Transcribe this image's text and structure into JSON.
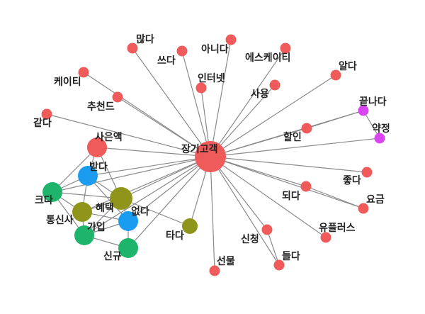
{
  "colors": {
    "red": "#ef5a5a",
    "purple": "#d946ef",
    "green": "#1fb46b",
    "blue": "#1a9cf0",
    "olive": "#8f951b",
    "edge": "#8a8a8a"
  },
  "nodes": [
    {
      "id": "jangigogaek",
      "label": "장기고객",
      "color": "red",
      "size": "hub"
    },
    {
      "id": "manta",
      "label": "많다",
      "color": "red",
      "size": "small"
    },
    {
      "id": "sseuda",
      "label": "쓰다",
      "color": "red",
      "size": "small"
    },
    {
      "id": "anida",
      "label": "아니다",
      "color": "red",
      "size": "small"
    },
    {
      "id": "eseukeiti",
      "label": "에스케이티",
      "color": "red",
      "size": "small"
    },
    {
      "id": "alda",
      "label": "알다",
      "color": "red",
      "size": "small"
    },
    {
      "id": "keiti",
      "label": "케이티",
      "color": "red",
      "size": "small"
    },
    {
      "id": "inteonet",
      "label": "인터넷",
      "color": "red",
      "size": "small"
    },
    {
      "id": "sayong",
      "label": "사용",
      "color": "red",
      "size": "small"
    },
    {
      "id": "chucheondeu",
      "label": "추천드",
      "color": "red",
      "size": "small"
    },
    {
      "id": "kkeutnada",
      "label": "끝나다",
      "color": "purple",
      "size": "small"
    },
    {
      "id": "gatda",
      "label": "같다",
      "color": "red",
      "size": "small"
    },
    {
      "id": "harin",
      "label": "할인",
      "color": "red",
      "size": "small"
    },
    {
      "id": "yakjeong",
      "label": "약정",
      "color": "purple",
      "size": "small"
    },
    {
      "id": "saeunhaek",
      "label": "사은액",
      "color": "red",
      "size": "medium"
    },
    {
      "id": "batda",
      "label": "받다",
      "color": "blue",
      "size": "medium"
    },
    {
      "id": "jota",
      "label": "좋다",
      "color": "red",
      "size": "small"
    },
    {
      "id": "keuda",
      "label": "크다",
      "color": "green",
      "size": "medium"
    },
    {
      "id": "hyetaek",
      "label": "혜택",
      "color": "olive",
      "size": "large"
    },
    {
      "id": "doeda",
      "label": "되다",
      "color": "red",
      "size": "small"
    },
    {
      "id": "yogeum",
      "label": "요금",
      "color": "red",
      "size": "small"
    },
    {
      "id": "tongsinsa",
      "label": "통신사",
      "color": "olive",
      "size": "medium"
    },
    {
      "id": "eopda",
      "label": "없다",
      "color": "blue",
      "size": "medium"
    },
    {
      "id": "gaip",
      "label": "가입",
      "color": "green",
      "size": "medium"
    },
    {
      "id": "yupeulleoseu",
      "label": "유플러스",
      "color": "red",
      "size": "small"
    },
    {
      "id": "tada",
      "label": "타다",
      "color": "olive",
      "size": "small2"
    },
    {
      "id": "sincheong",
      "label": "신청",
      "color": "red",
      "size": "small"
    },
    {
      "id": "sinkyu",
      "label": "신규",
      "color": "green",
      "size": "medium"
    },
    {
      "id": "deulda",
      "label": "들다",
      "color": "red",
      "size": "small"
    },
    {
      "id": "seonmul",
      "label": "선물",
      "color": "red",
      "size": "small"
    }
  ],
  "edges": [
    [
      "jangigogaek",
      "manta"
    ],
    [
      "jangigogaek",
      "sseuda"
    ],
    [
      "jangigogaek",
      "anida"
    ],
    [
      "jangigogaek",
      "eseukeiti"
    ],
    [
      "jangigogaek",
      "alda"
    ],
    [
      "jangigogaek",
      "keiti"
    ],
    [
      "jangigogaek",
      "inteonet"
    ],
    [
      "jangigogaek",
      "sayong"
    ],
    [
      "jangigogaek",
      "chucheondeu"
    ],
    [
      "jangigogaek",
      "kkeutnada"
    ],
    [
      "jangigogaek",
      "gatda"
    ],
    [
      "jangigogaek",
      "harin"
    ],
    [
      "jangigogaek",
      "yakjeong"
    ],
    [
      "jangigogaek",
      "saeunhaek"
    ],
    [
      "jangigogaek",
      "batda"
    ],
    [
      "jangigogaek",
      "jota"
    ],
    [
      "jangigogaek",
      "keuda"
    ],
    [
      "jangigogaek",
      "hyetaek"
    ],
    [
      "jangigogaek",
      "doeda"
    ],
    [
      "jangigogaek",
      "yogeum"
    ],
    [
      "jangigogaek",
      "tongsinsa"
    ],
    [
      "jangigogaek",
      "eopda"
    ],
    [
      "jangigogaek",
      "gaip"
    ],
    [
      "jangigogaek",
      "yupeulleoseu"
    ],
    [
      "jangigogaek",
      "tada"
    ],
    [
      "jangigogaek",
      "sincheong"
    ],
    [
      "jangigogaek",
      "sinkyu"
    ],
    [
      "jangigogaek",
      "deulda"
    ],
    [
      "jangigogaek",
      "seonmul"
    ],
    [
      "kkeutnada",
      "yakjeong"
    ],
    [
      "doeda",
      "yogeum"
    ],
    [
      "harin",
      "kkeutnada"
    ],
    [
      "saeunhaek",
      "batda"
    ],
    [
      "saeunhaek",
      "keuda"
    ],
    [
      "saeunhaek",
      "hyetaek"
    ],
    [
      "batda",
      "keuda"
    ],
    [
      "batda",
      "hyetaek"
    ],
    [
      "batda",
      "tongsinsa"
    ],
    [
      "batda",
      "eopda"
    ],
    [
      "keuda",
      "tongsinsa"
    ],
    [
      "keuda",
      "hyetaek"
    ],
    [
      "keuda",
      "gaip"
    ],
    [
      "hyetaek",
      "tongsinsa"
    ],
    [
      "hyetaek",
      "eopda"
    ],
    [
      "hyetaek",
      "gaip"
    ],
    [
      "hyetaek",
      "tada"
    ],
    [
      "tongsinsa",
      "gaip"
    ],
    [
      "tongsinsa",
      "eopda"
    ],
    [
      "eopda",
      "gaip"
    ],
    [
      "eopda",
      "sinkyu"
    ],
    [
      "gaip",
      "sinkyu"
    ],
    [
      "sincheong",
      "deulda"
    ]
  ]
}
